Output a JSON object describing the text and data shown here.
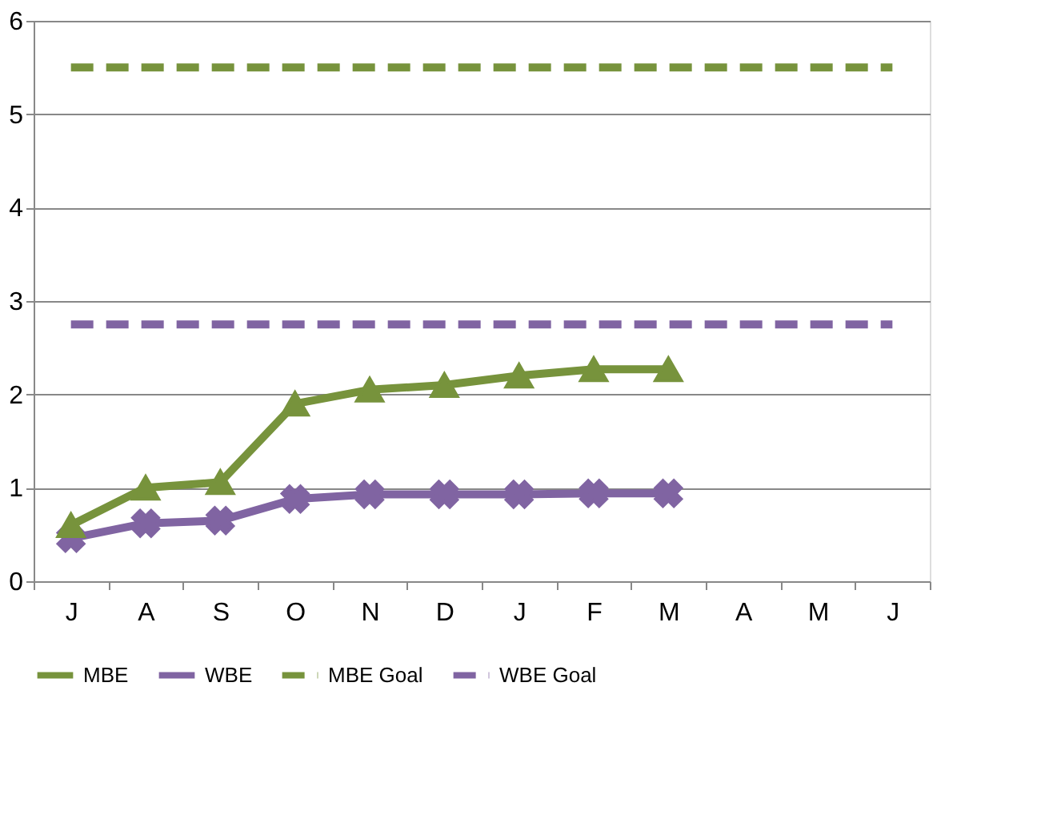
{
  "chart_data": {
    "type": "line",
    "categories": [
      "J",
      "A",
      "S",
      "O",
      "N",
      "D",
      "J",
      "F",
      "M",
      "A",
      "M",
      "J"
    ],
    "ylim": [
      0,
      6
    ],
    "yticks": [
      0,
      1,
      2,
      3,
      4,
      5,
      6
    ],
    "grid": "y",
    "legend": "bottom",
    "series": [
      {
        "name": "MBE",
        "color": "#77933c",
        "marker": "triangle",
        "line_style": "solid",
        "values": [
          0.6,
          1.0,
          1.06,
          1.9,
          2.05,
          2.1,
          2.2,
          2.27,
          2.27,
          null,
          null,
          null
        ]
      },
      {
        "name": "WBE",
        "color": "#8064a2",
        "marker": "cross",
        "line_style": "solid",
        "values": [
          0.46,
          0.62,
          0.65,
          0.88,
          0.93,
          0.93,
          0.93,
          0.94,
          0.94,
          null,
          null,
          null
        ]
      },
      {
        "name": "MBE Goal",
        "color": "#77933c",
        "marker": "none",
        "line_style": "dashed",
        "values": [
          5.5,
          5.5,
          5.5,
          5.5,
          5.5,
          5.5,
          5.5,
          5.5,
          5.5,
          5.5,
          5.5,
          5.5
        ]
      },
      {
        "name": "WBE Goal",
        "color": "#8064a2",
        "marker": "none",
        "line_style": "dashed",
        "values": [
          2.75,
          2.75,
          2.75,
          2.75,
          2.75,
          2.75,
          2.75,
          2.75,
          2.75,
          2.75,
          2.75,
          2.75
        ]
      }
    ]
  }
}
